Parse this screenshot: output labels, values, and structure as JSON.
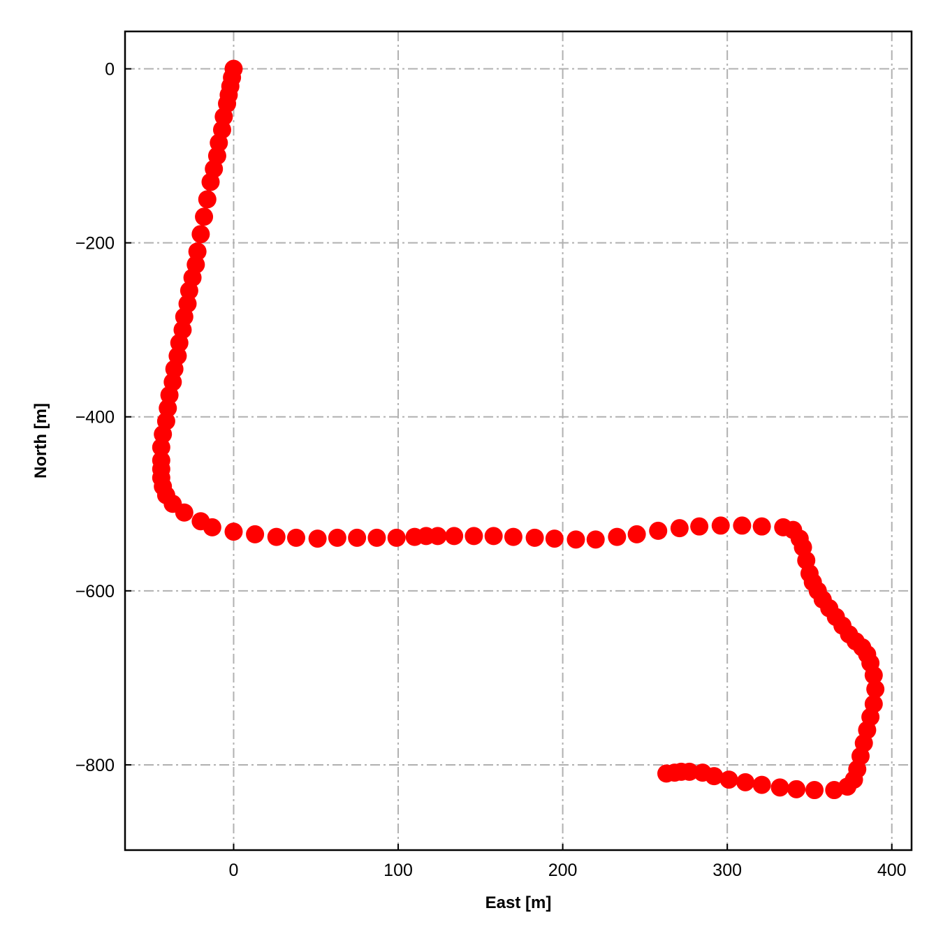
{
  "chart_data": {
    "type": "scatter",
    "title": "",
    "xlabel": "East [m]",
    "ylabel": "North [m]",
    "xlim": [
      -66,
      412
    ],
    "ylim": [
      -898,
      43
    ],
    "xticks": [
      0,
      100,
      200,
      300,
      400
    ],
    "yticks": [
      0,
      -200,
      -400,
      -600,
      -800
    ],
    "xtick_labels": [
      "0",
      "100",
      "200",
      "300",
      "400"
    ],
    "ytick_labels": [
      "0",
      "−200",
      "−400",
      "−600",
      "−800"
    ],
    "grid": true,
    "marker_color": "#ff0000",
    "series": [
      {
        "x": [
          0,
          -1,
          -2,
          -3,
          -4,
          -6,
          -7,
          -9,
          -10,
          -12,
          -14,
          -16,
          -18,
          -20,
          -22,
          -23,
          -25,
          -27,
          -28,
          -30,
          -31,
          -33,
          -34,
          -36,
          -37,
          -39,
          -40,
          -41,
          -43,
          -44,
          -44,
          -44,
          -44,
          -43,
          -41,
          -37,
          -30,
          -20,
          -13,
          0,
          13,
          26,
          38,
          51,
          63,
          75,
          87,
          99,
          110,
          117,
          124,
          134,
          146,
          158,
          170,
          183,
          195,
          208,
          220,
          233,
          245,
          258,
          271,
          283,
          296,
          309,
          321,
          334,
          340,
          344,
          346,
          348,
          350,
          352,
          355,
          358,
          362,
          366,
          370,
          374,
          378,
          382,
          385,
          387,
          389,
          390,
          389,
          387,
          385,
          383,
          381,
          379,
          377,
          373,
          365,
          353,
          342,
          332,
          321,
          311,
          301,
          292,
          285,
          277,
          272,
          268,
          263
        ],
        "y": [
          0,
          -10,
          -20,
          -30,
          -40,
          -55,
          -70,
          -85,
          -100,
          -115,
          -130,
          -150,
          -170,
          -190,
          -210,
          -225,
          -240,
          -255,
          -270,
          -285,
          -300,
          -315,
          -330,
          -345,
          -360,
          -375,
          -390,
          -405,
          -420,
          -435,
          -450,
          -460,
          -470,
          -480,
          -490,
          -500,
          -510,
          -520,
          -527,
          -532,
          -535,
          -538,
          -539,
          -540,
          -539,
          -539,
          -539,
          -539,
          -538,
          -537,
          -537,
          -537,
          -537,
          -537,
          -538,
          -539,
          -540,
          -541,
          -541,
          -538,
          -535,
          -531,
          -528,
          -526,
          -525,
          -525,
          -526,
          -527,
          -530,
          -540,
          -550,
          -565,
          -580,
          -590,
          -600,
          -610,
          -620,
          -630,
          -640,
          -650,
          -658,
          -665,
          -673,
          -683,
          -697,
          -713,
          -730,
          -745,
          -760,
          -775,
          -790,
          -805,
          -817,
          -825,
          -829,
          -829,
          -828,
          -826,
          -823,
          -820,
          -817,
          -813,
          -809,
          -808,
          -808,
          -809,
          -810
        ]
      }
    ]
  }
}
